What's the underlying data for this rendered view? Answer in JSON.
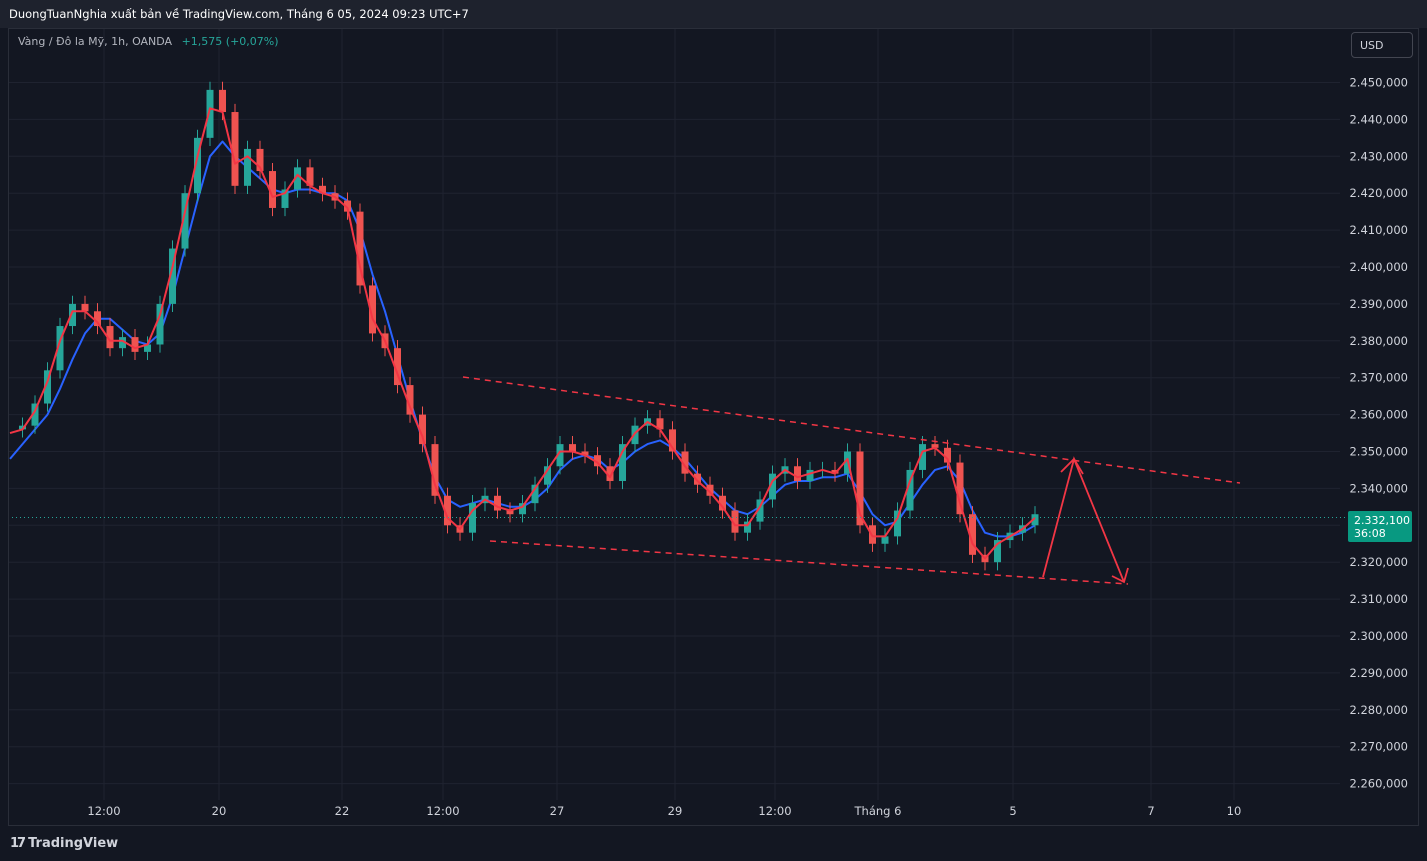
{
  "header": {
    "publisher_line": "DuongTuanNghia xuất bản về TradingView.com, Tháng 6 05, 2024 09:23 UTC+7"
  },
  "symbol": {
    "name": "Vàng / Đô la Mỹ, 1h, OANDA",
    "change": "+1,575 (+0,07%)"
  },
  "currency_button": "USD",
  "last_price": {
    "price": "2.332,100",
    "countdown": "36:08"
  },
  "footer": {
    "logo_mark": "17",
    "logo_text": "TradingView"
  },
  "colors": {
    "up": "#26a69a",
    "down": "#ef5350",
    "fast_ma": "#f23645",
    "slow_ma": "#2962ff",
    "channel": "#f23645",
    "arrow": "#f23645"
  },
  "chart_data": {
    "type": "line",
    "title": "",
    "ylim": [
      2255,
      2455
    ],
    "y_ticks": [
      "2.450,000",
      "2.440,000",
      "2.430,000",
      "2.420,000",
      "2.410,000",
      "2.400,000",
      "2.390,000",
      "2.380,000",
      "2.370,000",
      "2.360,000",
      "2.350,000",
      "2.340,000",
      "2.330,000",
      "2.320,000",
      "2.310,000",
      "2.300,000",
      "2.290,000",
      "2.280,000",
      "2.270,000",
      "2.260,000"
    ],
    "y_tick_values": [
      2450,
      2440,
      2430,
      2420,
      2410,
      2400,
      2390,
      2380,
      2370,
      2360,
      2350,
      2340,
      2330,
      2320,
      2310,
      2300,
      2290,
      2280,
      2270,
      2260
    ],
    "x_ticks": [
      "12:00",
      "20",
      "22",
      "12:00",
      "27",
      "29",
      "12:00",
      "Tháng 6",
      "5",
      "7",
      "10"
    ],
    "grid": true,
    "legend": "none",
    "series": [
      {
        "kind": "price",
        "x": [
          0,
          2,
          4,
          6,
          8,
          10,
          12,
          14,
          16,
          18,
          20,
          22,
          24,
          26,
          28,
          30,
          32,
          34,
          36,
          38,
          40,
          42,
          44,
          46,
          48,
          50,
          52,
          54,
          56,
          58,
          60,
          62,
          64,
          66,
          68,
          70,
          72,
          74,
          76,
          78,
          80,
          82,
          84,
          86,
          88,
          90,
          92,
          94,
          96,
          98,
          100,
          102,
          104,
          106,
          108,
          110,
          112,
          114,
          116,
          118,
          120,
          122,
          124,
          126,
          128,
          130,
          132,
          134,
          136,
          138,
          140,
          142,
          144,
          146,
          148,
          150,
          152,
          154,
          156,
          158,
          160,
          162,
          164,
          166,
          168,
          170,
          172,
          174,
          176,
          178,
          180,
          182,
          184,
          186,
          188,
          190,
          192,
          194,
          196,
          198,
          200,
          202,
          204,
          206,
          208
        ],
        "values": [
          2356,
          2357,
          2363,
          2372,
          2384,
          2390,
          2388,
          2384,
          2378,
          2381,
          2377,
          2379,
          2390,
          2405,
          2420,
          2435,
          2448,
          2442,
          2422,
          2432,
          2426,
          2416,
          2421,
          2427,
          2422,
          2420,
          2418,
          2415,
          2395,
          2382,
          2378,
          2368,
          2360,
          2352,
          2338,
          2330,
          2328,
          2336,
          2338,
          2334,
          2333,
          2336,
          2341,
          2346,
          2352,
          2350,
          2349,
          2346,
          2342,
          2352,
          2357,
          2359,
          2356,
          2350,
          2344,
          2341,
          2338,
          2334,
          2328,
          2331,
          2337,
          2344,
          2346,
          2342,
          2345,
          2345,
          2344,
          2350,
          2330,
          2325,
          2327,
          2334,
          2345,
          2352,
          2351,
          2347,
          2333,
          2322,
          2320,
          2326,
          2328,
          2330,
          2333,
          null,
          null,
          null,
          null,
          null,
          null,
          null,
          null,
          null,
          null,
          null,
          null,
          null,
          null,
          null,
          null,
          null,
          null,
          null,
          null,
          null,
          null
        ]
      },
      {
        "name": "",
        "kind": "fast_ma",
        "values": [
          2355,
          2356,
          2361,
          2369,
          2380,
          2388,
          2388,
          2385,
          2380,
          2380,
          2378,
          2379,
          2387,
          2400,
          2415,
          2430,
          2443,
          2442,
          2428,
          2430,
          2427,
          2419,
          2420,
          2425,
          2422,
          2420,
          2419,
          2416,
          2400,
          2386,
          2380,
          2371,
          2362,
          2354,
          2341,
          2332,
          2329,
          2334,
          2337,
          2335,
          2334,
          2335,
          2340,
          2345,
          2350,
          2350,
          2349,
          2347,
          2343,
          2350,
          2355,
          2358,
          2356,
          2351,
          2346,
          2342,
          2339,
          2335,
          2330,
          2330,
          2335,
          2342,
          2345,
          2343,
          2344,
          2345,
          2344,
          2348,
          2333,
          2327,
          2327,
          2332,
          2342,
          2350,
          2351,
          2348,
          2336,
          2325,
          2321,
          2325,
          2327,
          2329,
          2332,
          null,
          null,
          null,
          null,
          null,
          null,
          null,
          null,
          null,
          null,
          null,
          null,
          null,
          null,
          null,
          null,
          null,
          null,
          null,
          null,
          null,
          null
        ]
      },
      {
        "name": "",
        "kind": "slow_ma",
        "values": [
          2348,
          2352,
          2356,
          2360,
          2367,
          2375,
          2382,
          2386,
          2386,
          2383,
          2380,
          2379,
          2382,
          2392,
          2405,
          2418,
          2430,
          2434,
          2430,
          2427,
          2424,
          2421,
          2420,
          2421,
          2421,
          2420,
          2420,
          2418,
          2410,
          2398,
          2388,
          2376,
          2364,
          2353,
          2343,
          2337,
          2335,
          2336,
          2337,
          2336,
          2335,
          2335,
          2337,
          2340,
          2345,
          2348,
          2349,
          2348,
          2345,
          2347,
          2350,
          2352,
          2353,
          2351,
          2348,
          2344,
          2340,
          2337,
          2334,
          2333,
          2335,
          2338,
          2341,
          2342,
          2342,
          2343,
          2343,
          2344,
          2339,
          2333,
          2330,
          2331,
          2336,
          2341,
          2345,
          2346,
          2342,
          2334,
          2328,
          2327,
          2327,
          2328,
          2330,
          null,
          null,
          null,
          null,
          null,
          null,
          null,
          null,
          null,
          null,
          null,
          null,
          null,
          null,
          null,
          null,
          null,
          null,
          null,
          null,
          null,
          null
        ]
      }
    ],
    "annotations": {
      "channel_upper": [
        [
          0,
          0
        ],
        [
          0,
          0
        ]
      ],
      "channel_lower": [
        [
          0,
          0
        ],
        [
          0,
          0
        ]
      ],
      "projection_arrow": []
    }
  }
}
